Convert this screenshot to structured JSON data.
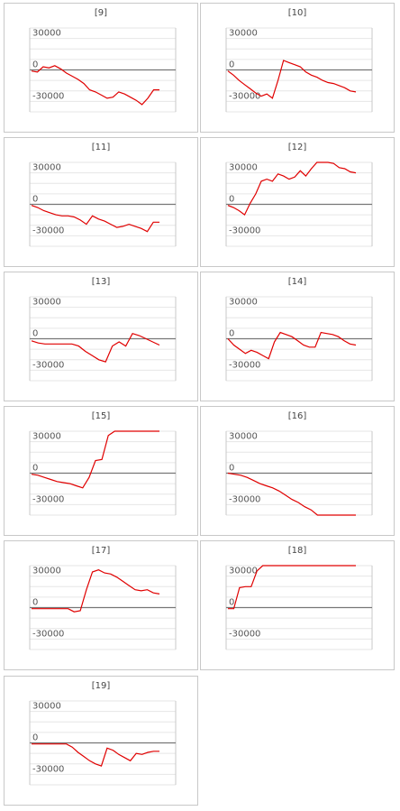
{
  "colors": {
    "line": "#e00000",
    "grid": "#e6e6e6",
    "zero": "#777777",
    "frame": "#c8c8c8"
  },
  "chart_data": [
    {
      "type": "line",
      "title": "[9]",
      "ylim": [
        -40000,
        40000
      ],
      "yticks": [
        30000,
        0,
        -30000
      ],
      "y": [
        -1000,
        -2000,
        3000,
        2000,
        4000,
        1000,
        -3000,
        -6000,
        -9000,
        -13000,
        -19000,
        -21000,
        -24000,
        -27000,
        -26000,
        -21000,
        -23000,
        -26000,
        -29000,
        -33000,
        -27000,
        -19000,
        -19000
      ]
    },
    {
      "type": "line",
      "title": "[10]",
      "ylim": [
        -40000,
        40000
      ],
      "yticks": [
        30000,
        0,
        -30000
      ],
      "y": [
        -1000,
        -5000,
        -10000,
        -14000,
        -18000,
        -22000,
        -25000,
        -23000,
        -27000,
        -10000,
        9000,
        7000,
        5000,
        3000,
        -2000,
        -5000,
        -7000,
        -10000,
        -12000,
        -13000,
        -15000,
        -17000,
        -20000,
        -21000
      ]
    },
    {
      "type": "line",
      "title": "[11]",
      "ylim": [
        -40000,
        40000
      ],
      "yticks": [
        30000,
        0,
        -30000
      ],
      "y": [
        -1000,
        -3000,
        -6000,
        -8000,
        -10000,
        -11000,
        -11000,
        -12000,
        -15000,
        -19000,
        -11000,
        -14000,
        -16000,
        -19000,
        -22000,
        -21000,
        -19000,
        -21000,
        -23000,
        -26000,
        -17000,
        -17000
      ]
    },
    {
      "type": "line",
      "title": "[12]",
      "ylim": [
        -40000,
        40000
      ],
      "yticks": [
        30000,
        0,
        -30000
      ],
      "y": [
        -1000,
        -3000,
        -6000,
        -10000,
        1000,
        10000,
        22000,
        24000,
        22000,
        29000,
        27000,
        24000,
        26000,
        32000,
        27000,
        34000,
        46000,
        43000,
        40000,
        39000,
        35000,
        34000,
        31000,
        30000
      ]
    },
    {
      "type": "line",
      "title": "[13]",
      "ylim": [
        -40000,
        40000
      ],
      "yticks": [
        30000,
        0,
        -30000
      ],
      "y": [
        -2000,
        -4000,
        -5000,
        -5000,
        -5000,
        -5000,
        -5000,
        -7000,
        -12000,
        -16000,
        -20000,
        -22000,
        -7000,
        -3000,
        -7000,
        5000,
        3000,
        0,
        -3000,
        -6000
      ]
    },
    {
      "type": "line",
      "title": "[14]",
      "ylim": [
        -40000,
        40000
      ],
      "yticks": [
        30000,
        0,
        -30000
      ],
      "y": [
        0,
        -6000,
        -10000,
        -14000,
        -11000,
        -13000,
        -16000,
        -19000,
        -3000,
        6000,
        4000,
        2000,
        -2000,
        -6000,
        -8000,
        -8000,
        6000,
        5000,
        4000,
        2000,
        -2000,
        -5000,
        -6000
      ]
    },
    {
      "type": "line",
      "title": "[15]",
      "ylim": [
        -40000,
        40000
      ],
      "yticks": [
        30000,
        0,
        -30000
      ],
      "y": [
        -1000,
        -2000,
        -4000,
        -6000,
        -8000,
        -9000,
        -10000,
        -12000,
        -14000,
        -4000,
        12000,
        13000,
        36000,
        50000,
        50000,
        50000,
        50000,
        50000,
        50000,
        50000,
        50000
      ]
    },
    {
      "type": "line",
      "title": "[16]",
      "ylim": [
        -40000,
        40000
      ],
      "yticks": [
        30000,
        0,
        -30000
      ],
      "y": [
        0,
        -1000,
        -2000,
        -4000,
        -7000,
        -10000,
        -12000,
        -14000,
        -17000,
        -21000,
        -25000,
        -28000,
        -32000,
        -35000,
        -40000,
        -42000,
        -46000,
        -49000,
        -52000,
        -53000,
        -53000
      ]
    },
    {
      "type": "line",
      "title": "[17]",
      "ylim": [
        -40000,
        40000
      ],
      "yticks": [
        30000,
        0,
        -30000
      ],
      "y": [
        -1000,
        -1000,
        -1000,
        -1000,
        -1000,
        -1000,
        -1000,
        -4000,
        -3000,
        17000,
        34000,
        36000,
        33000,
        32000,
        29000,
        25000,
        21000,
        17000,
        16000,
        17000,
        14000,
        13000
      ]
    },
    {
      "type": "line",
      "title": "[18]",
      "ylim": [
        -40000,
        40000
      ],
      "yticks": [
        30000,
        0,
        -30000
      ],
      "y": [
        -1000,
        -1000,
        19000,
        20000,
        20000,
        35000,
        55000,
        55000,
        55000,
        55000,
        55000,
        55000,
        55000,
        55000,
        55000,
        55000,
        55000,
        55000,
        55000,
        55000,
        55000,
        55000,
        55000
      ]
    },
    {
      "type": "line",
      "title": "[19]",
      "ylim": [
        -40000,
        40000
      ],
      "yticks": [
        30000,
        0,
        -30000
      ],
      "y": [
        -1000,
        -1000,
        -1000,
        -1000,
        -1000,
        -1000,
        -1000,
        -4000,
        -9000,
        -13000,
        -17000,
        -20000,
        -22000,
        -5000,
        -7000,
        -11000,
        -14000,
        -17000,
        -10000,
        -11000,
        -9000,
        -8000,
        -8000
      ]
    }
  ]
}
